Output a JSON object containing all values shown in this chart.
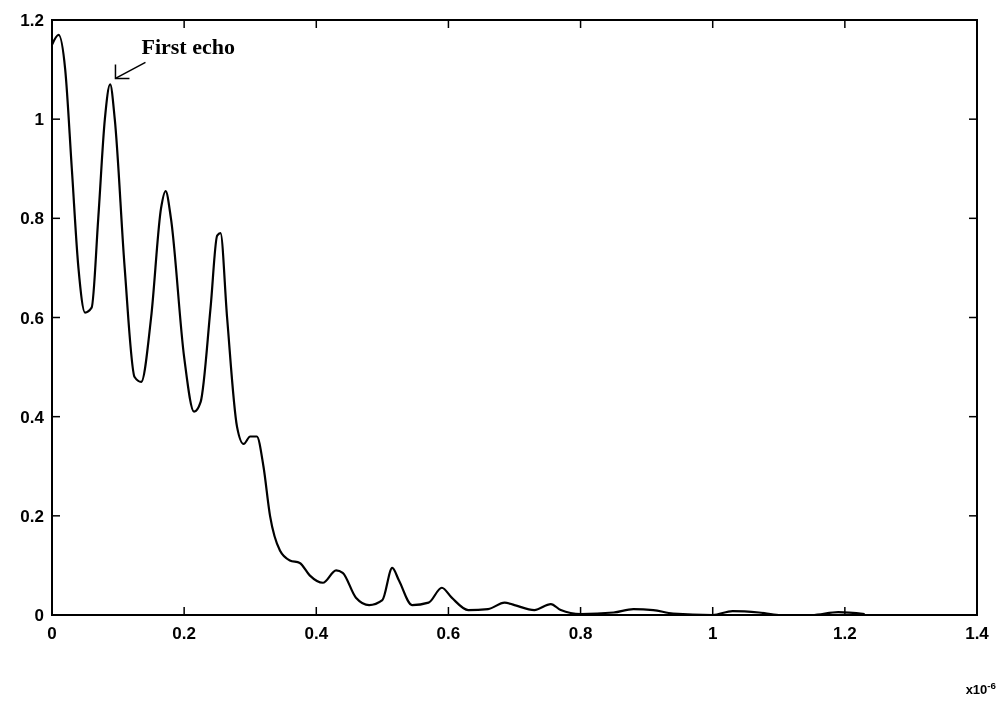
{
  "chart_data": {
    "type": "line",
    "x": [
      0,
      0.01,
      0.02,
      0.03,
      0.04,
      0.05,
      0.06,
      0.07,
      0.08,
      0.088,
      0.095,
      0.11,
      0.125,
      0.135,
      0.15,
      0.165,
      0.172,
      0.18,
      0.2,
      0.215,
      0.225,
      0.24,
      0.25,
      0.255,
      0.265,
      0.28,
      0.29,
      0.3,
      0.31,
      0.32,
      0.33,
      0.345,
      0.36,
      0.375,
      0.39,
      0.41,
      0.43,
      0.44,
      0.46,
      0.48,
      0.5,
      0.515,
      0.525,
      0.545,
      0.57,
      0.59,
      0.605,
      0.63,
      0.66,
      0.685,
      0.7,
      0.73,
      0.755,
      0.77,
      0.8,
      0.85,
      0.88,
      0.91,
      0.94,
      1.0,
      1.03,
      1.07,
      1.1,
      1.15,
      1.19,
      1.23
    ],
    "series": [
      {
        "color": "#000000",
        "values": [
          1.15,
          1.17,
          1.1,
          0.9,
          0.7,
          0.61,
          0.62,
          0.8,
          1.0,
          1.07,
          1.0,
          0.7,
          0.48,
          0.47,
          0.6,
          0.82,
          0.855,
          0.8,
          0.52,
          0.41,
          0.43,
          0.62,
          0.765,
          0.77,
          0.6,
          0.38,
          0.345,
          0.36,
          0.36,
          0.3,
          0.2,
          0.13,
          0.11,
          0.105,
          0.08,
          0.065,
          0.09,
          0.085,
          0.035,
          0.02,
          0.03,
          0.095,
          0.07,
          0.02,
          0.025,
          0.055,
          0.035,
          0.01,
          0.012,
          0.025,
          0.02,
          0.01,
          0.022,
          0.01,
          0.002,
          0.005,
          0.012,
          0.01,
          0.003,
          0.0,
          0.008,
          0.005,
          0.0,
          0.0,
          0.006,
          0.002
        ]
      }
    ],
    "xlim": [
      0,
      1.4
    ],
    "xticks": [
      0,
      0.2,
      0.4,
      0.6,
      0.8,
      1,
      1.2,
      1.4
    ],
    "ylim": [
      0,
      1.2
    ],
    "yticks": [
      0,
      0.2,
      0.4,
      0.6,
      0.8,
      1,
      1.2
    ],
    "grid": false,
    "marker": "none",
    "line_style": "solid",
    "annotations": [
      {
        "text": "First echo",
        "x": 0.09,
        "y": 1.07
      },
      "x10$^{-6}$"
    ]
  }
}
